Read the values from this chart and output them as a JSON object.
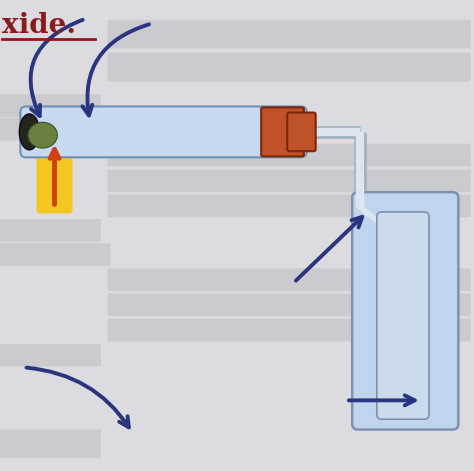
{
  "bg_color": "#dcdce0",
  "title_text": "xide.",
  "title_color": "#8b1a1a",
  "tube_color": "#c8d8ee",
  "tube_edge": "#7090b0",
  "stopper_color": "#c0522a",
  "delivery_tube_color": "#dde6f0",
  "delivery_tube_edge": "#a0b0c0",
  "arrow_color": "#2a3580",
  "flame_yellow": "#f5c518",
  "flame_orange": "#d04010",
  "substance_green": "#6a8040",
  "substance_dark": "#252520",
  "water_color": "#c0d4ee",
  "coll_tube_color": "#ccdaee",
  "coll_tube_edge": "#8090b0",
  "gray_box": "#c0c0c4"
}
